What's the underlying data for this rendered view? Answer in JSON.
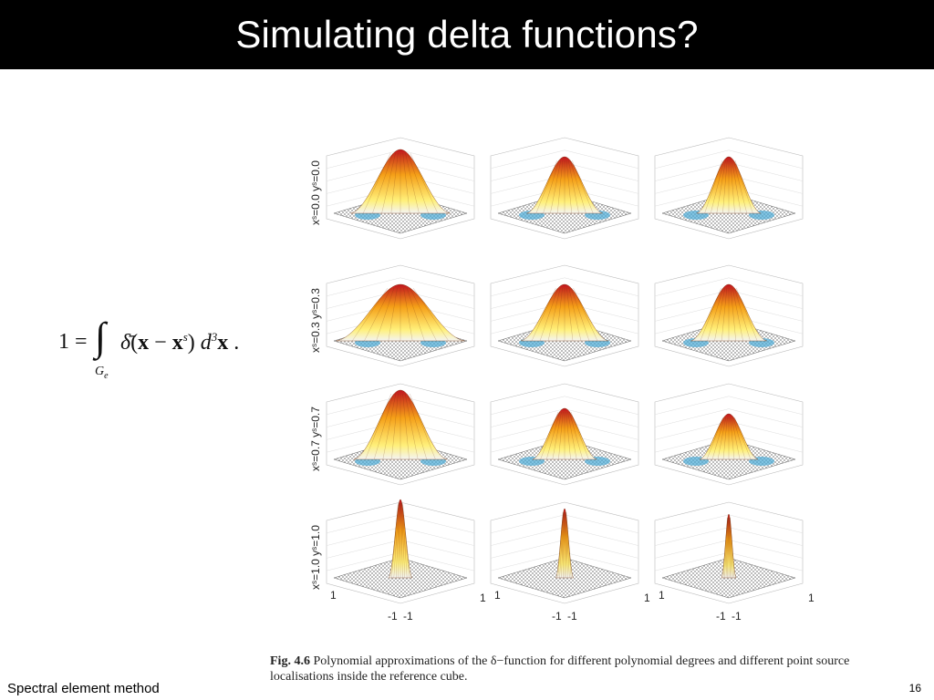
{
  "slide": {
    "title": "Simulating delta functions?",
    "footer_left": "Spectral element method",
    "page_number": "16"
  },
  "equation": {
    "lhs": "1 =",
    "integral_symbol": "∫",
    "subscript": "Ge",
    "body_text": "δ̄(x − xs) d3x ."
  },
  "figure": {
    "row_labels": [
      "xˢ=0.0 yˢ=0.0",
      "xˢ=0.3 yˢ=0.3",
      "xˢ=0.7 yˢ=0.7",
      "xˢ=1.0 yˢ=1.0"
    ],
    "axis_tick_labels": {
      "left_y": "1",
      "bottom_left": "-1",
      "bottom_mid": "-1",
      "bottom_right": "1"
    },
    "colors": {
      "peak": "#c0141e",
      "mid": "#f5a018",
      "low": "#fff07a",
      "negative": "#49a9d6",
      "mesh": "#555555"
    }
  },
  "caption": {
    "label": "Fig. 4.6",
    "text": "Polynomial approximations of the δ−function for different polynomial degrees and different point source localisations inside the reference cube."
  }
}
